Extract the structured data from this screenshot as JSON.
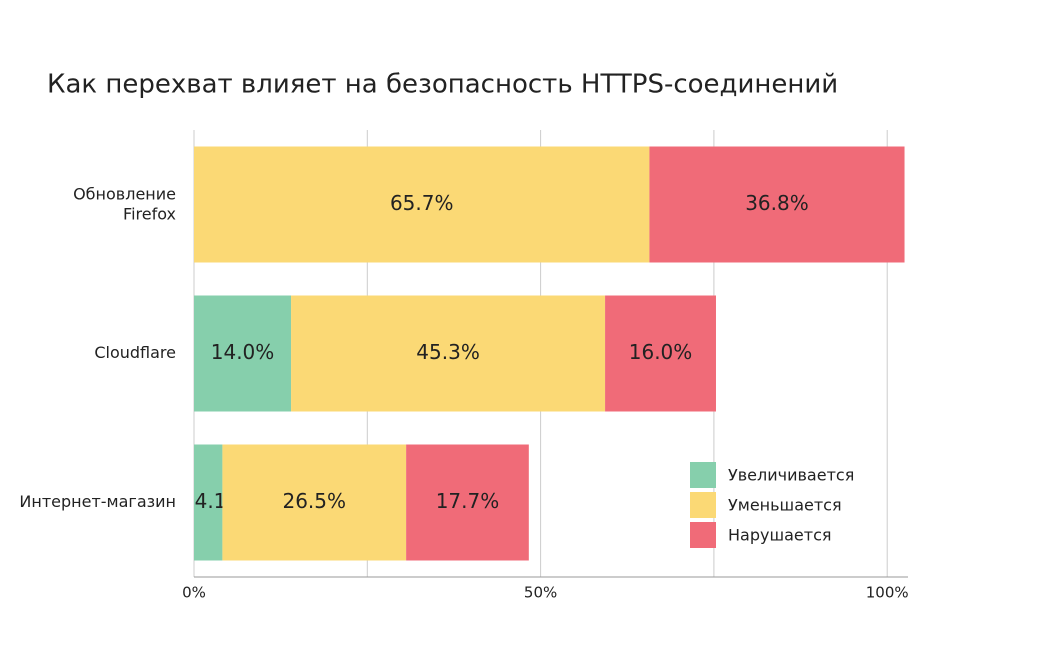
{
  "chart_data": {
    "type": "stacked-bar-horizontal",
    "title": "Как перехват влияет на безопасность HTTPS-соединений",
    "categories": [
      "Обновление Firefox",
      "Cloudflare",
      "Интернет-магазин"
    ],
    "series": [
      {
        "name": "Увеличивается",
        "color": "#86cfac",
        "values": [
          null,
          14.0,
          4.1
        ],
        "value_labels": [
          null,
          "14.0%",
          "4.1%"
        ],
        "label_color": "#444444"
      },
      {
        "name": "Уменьшается",
        "color": "#fbd975",
        "values": [
          65.7,
          45.3,
          26.5
        ],
        "value_labels": [
          "65.7%",
          "45.3%",
          "26.5%"
        ],
        "label_color": "#444444"
      },
      {
        "name": "Нарушается",
        "color": "#f06b78",
        "values": [
          36.8,
          16.0,
          17.7
        ],
        "value_labels": [
          "36.8%",
          "16.0%",
          "17.7%"
        ],
        "label_color": "#ffffff"
      }
    ],
    "xlim": [
      0,
      103
    ],
    "xticks": [
      {
        "value": 0,
        "label": "0%"
      },
      {
        "value": 50,
        "label": "50%"
      },
      {
        "value": 100,
        "label": "100%"
      }
    ],
    "xminorticks": [
      25,
      75
    ],
    "grid": true,
    "legend": "lower-right"
  }
}
